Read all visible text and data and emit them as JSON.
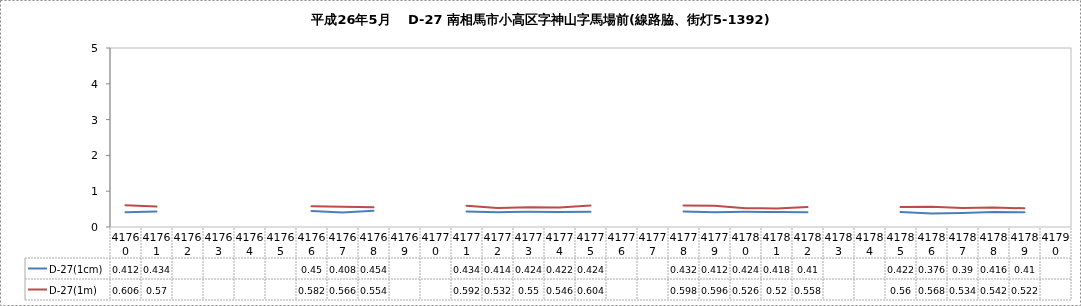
{
  "chart_data": {
    "type": "line",
    "title": "平成26年5月　 D-27 南相馬市小高区字神山字馬場前(線路脇、街灯5-1392)",
    "categories": [
      "41760",
      "41761",
      "41762",
      "41763",
      "41764",
      "41765",
      "41766",
      "41767",
      "41768",
      "41769",
      "41770",
      "41771",
      "41772",
      "41773",
      "41774",
      "41775",
      "41776",
      "41777",
      "41778",
      "41779",
      "41780",
      "41781",
      "41782",
      "41783",
      "41784",
      "41785",
      "41786",
      "41787",
      "41788",
      "41789",
      "41790"
    ],
    "series": [
      {
        "name": "D-27(1cm)",
        "color": "#4a7ebb",
        "values": [
          0.412,
          0.434,
          null,
          null,
          null,
          null,
          0.45,
          0.408,
          0.454,
          null,
          null,
          0.434,
          0.414,
          0.424,
          0.422,
          0.424,
          null,
          null,
          0.432,
          0.412,
          0.424,
          0.418,
          0.41,
          null,
          null,
          0.422,
          0.376,
          0.39,
          0.416,
          0.41,
          null
        ]
      },
      {
        "name": "D-27(1m)",
        "color": "#be4b48",
        "values": [
          0.606,
          0.57,
          null,
          null,
          null,
          null,
          0.582,
          0.566,
          0.554,
          null,
          null,
          0.592,
          0.532,
          0.55,
          0.546,
          0.604,
          null,
          null,
          0.598,
          0.596,
          0.526,
          0.52,
          0.558,
          null,
          null,
          0.56,
          0.568,
          0.534,
          0.542,
          0.522,
          null
        ]
      }
    ],
    "ylim": [
      0,
      5
    ],
    "yticks": [
      0,
      1,
      2,
      3,
      4,
      5
    ],
    "data_labels": true,
    "legend": "bottom left",
    "marker": "none",
    "line_style": "solid"
  }
}
